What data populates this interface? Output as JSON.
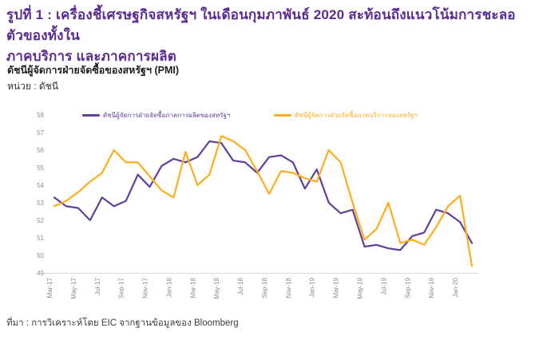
{
  "page": {
    "title_line1": "รูปที่ 1 : เครื่องชี้เศรษฐกิจสหรัฐฯ ในเดือนกุมภาพันธ์ 2020 สะท้อนถึงแนวโน้มการชะลอตัวของทั้งใน",
    "title_line2": "ภาคบริการ และภาคการผลิต",
    "subtitle": "ดัชนีผู้จัดการฝ่ายจัดซื้อของสหรัฐฯ (PMI)",
    "unit_label": "หน่วย : ดัชนี",
    "source": "ที่มา : การวิเคราะห์โดย EIC จากฐานข้อมูลของ Bloomberg"
  },
  "colors": {
    "title": "#5B2C90",
    "manufacturing": "#5F4199",
    "services": "#FFAD1F",
    "axis_text": "#8C8C8C",
    "axis_line": "#D9D9D9"
  },
  "chart_data": {
    "type": "line",
    "title": "ดัชนีผู้จัดการฝ่ายจัดซื้อของสหรัฐฯ (PMI)",
    "ylabel": "หน่วย : ดัชนี",
    "xlabel": "",
    "grid": false,
    "legend_position": "top",
    "ylim": [
      49,
      58
    ],
    "y_ticks": [
      49,
      50,
      51,
      52,
      53,
      54,
      55,
      56,
      57,
      58
    ],
    "x": [
      "Mar-17",
      "Apr-17",
      "May-17",
      "Jun-17",
      "Jul-17",
      "Aug-17",
      "Sep-17",
      "Oct-17",
      "Nov-17",
      "Dec-17",
      "Jan-18",
      "Feb-18",
      "Mar-18",
      "Apr-18",
      "May-18",
      "Jun-18",
      "Jul-18",
      "Aug-18",
      "Sep-18",
      "Oct-18",
      "Nov-18",
      "Dec-18",
      "Jan-19",
      "Feb-19",
      "Mar-19",
      "Apr-19",
      "May-19",
      "Jun-19",
      "Jul-19",
      "Aug-19",
      "Sep-19",
      "Oct-19",
      "Nov-19",
      "Dec-19",
      "Jan-20",
      "Feb-20"
    ],
    "x_tick_labels": [
      "Mar-17",
      "May-17",
      "Jul-17",
      "Sep-17",
      "Nov-17",
      "Jan-18",
      "Mar-18",
      "May-18",
      "Jul-18",
      "Sep-18",
      "Nov-18",
      "Jan-19",
      "Mar-19",
      "May-19",
      "Jul-19",
      "Sep-19",
      "Nov-19",
      "Jan-20"
    ],
    "series": [
      {
        "name": "ดัชนีผู้จัดการฝ่ายจัดซื้อภาคการผลิตของสหรัฐฯ",
        "color_key": "manufacturing",
        "values": [
          53.3,
          52.8,
          52.7,
          52.0,
          53.3,
          52.8,
          53.1,
          54.6,
          53.9,
          55.1,
          55.5,
          55.3,
          55.6,
          56.5,
          56.4,
          55.4,
          55.3,
          54.7,
          55.6,
          55.7,
          55.3,
          53.8,
          54.9,
          53.0,
          52.4,
          52.6,
          50.5,
          50.6,
          50.4,
          50.3,
          51.1,
          51.3,
          52.6,
          52.4,
          51.9,
          50.7
        ]
      },
      {
        "name": "ดัชนีผู้จัดการฝ่ายจัดซื้อภาคบริการของสหรัฐฯ",
        "color_key": "services",
        "values": [
          52.8,
          53.1,
          53.6,
          54.2,
          54.7,
          56.0,
          55.3,
          55.3,
          54.5,
          53.7,
          53.3,
          55.9,
          54.0,
          54.6,
          56.8,
          56.5,
          56.0,
          54.8,
          53.5,
          54.8,
          54.7,
          54.4,
          54.2,
          56.0,
          55.3,
          53.0,
          50.9,
          51.5,
          53.0,
          50.7,
          50.9,
          50.6,
          51.6,
          52.8,
          53.4,
          49.4
        ]
      }
    ]
  }
}
